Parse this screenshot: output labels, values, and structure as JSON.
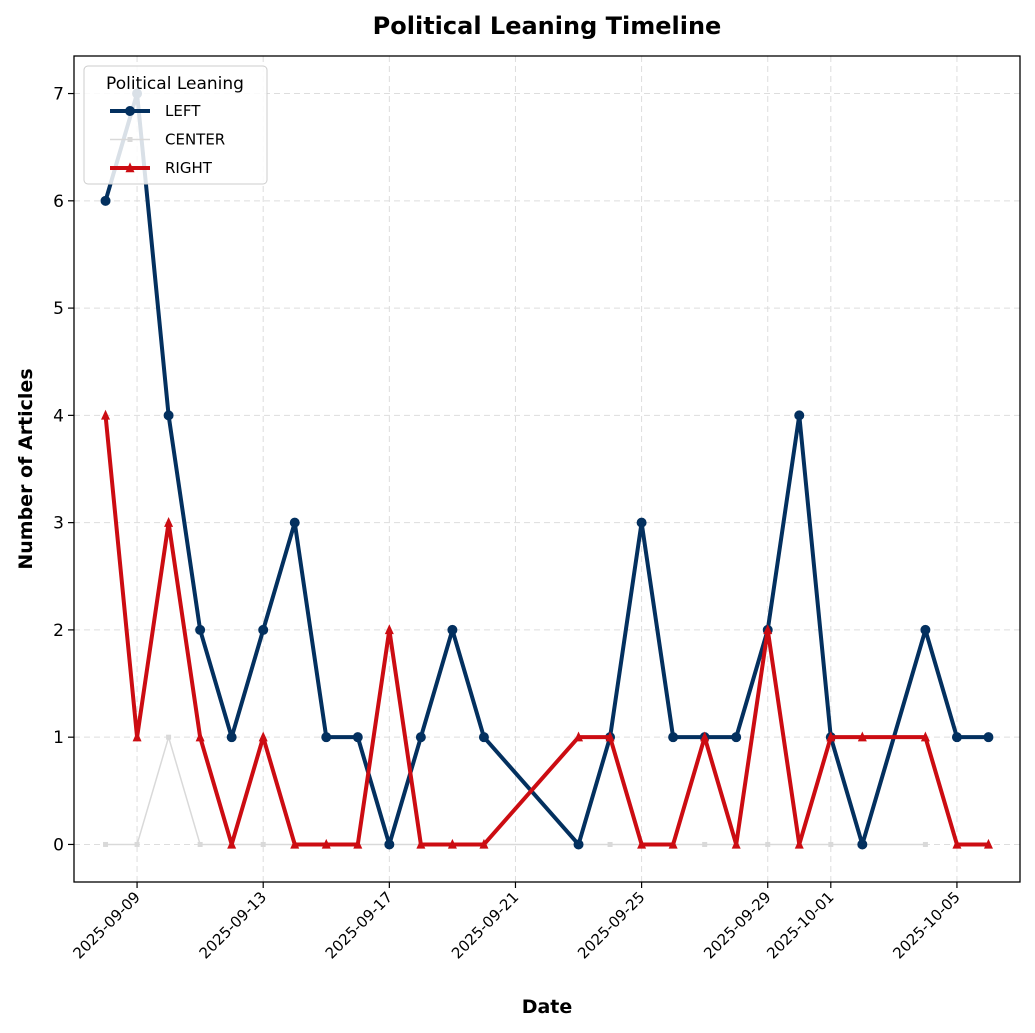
{
  "chart_data": {
    "type": "line",
    "title": "Political Leaning Timeline",
    "xlabel": "Date",
    "ylabel": "Number of Articles",
    "x_axis_type": "date",
    "xlim": [
      "2025-09-07",
      "2025-10-07"
    ],
    "ylim": [
      -0.35,
      7.35
    ],
    "yticks": [
      0,
      1,
      2,
      3,
      4,
      5,
      6,
      7
    ],
    "xticks": [
      "2025-09-09",
      "2025-09-13",
      "2025-09-17",
      "2025-09-21",
      "2025-09-25",
      "2025-09-29",
      "2025-10-01",
      "2025-10-05"
    ],
    "grid": true,
    "legend": {
      "title": "Political Leaning",
      "placement": "top-left"
    },
    "series": [
      {
        "name": "LEFT",
        "color": "#03305f",
        "marker": "circle",
        "points": [
          [
            "2025-09-08",
            6
          ],
          [
            "2025-09-09",
            7
          ],
          [
            "2025-09-10",
            4
          ],
          [
            "2025-09-11",
            2
          ],
          [
            "2025-09-12",
            1
          ],
          [
            "2025-09-13",
            2
          ],
          [
            "2025-09-14",
            3
          ],
          [
            "2025-09-15",
            1
          ],
          [
            "2025-09-16",
            1
          ],
          [
            "2025-09-17",
            0
          ],
          [
            "2025-09-18",
            1
          ],
          [
            "2025-09-19",
            2
          ],
          [
            "2025-09-20",
            1
          ],
          [
            "2025-09-23",
            0
          ],
          [
            "2025-09-24",
            1
          ],
          [
            "2025-09-25",
            3
          ],
          [
            "2025-09-26",
            1
          ],
          [
            "2025-09-27",
            1
          ],
          [
            "2025-09-28",
            1
          ],
          [
            "2025-09-29",
            2
          ],
          [
            "2025-09-30",
            4
          ],
          [
            "2025-10-01",
            1
          ],
          [
            "2025-10-02",
            0
          ],
          [
            "2025-10-04",
            2
          ],
          [
            "2025-10-05",
            1
          ],
          [
            "2025-10-06",
            1
          ]
        ]
      },
      {
        "name": "CENTER",
        "color": "#d9d9d9",
        "marker": "square",
        "points": [
          [
            "2025-09-08",
            0
          ],
          [
            "2025-09-09",
            0
          ],
          [
            "2025-09-10",
            1
          ],
          [
            "2025-09-11",
            0
          ],
          [
            "2025-09-13",
            0
          ],
          [
            "2025-09-17",
            0
          ],
          [
            "2025-09-23",
            0
          ],
          [
            "2025-09-24",
            0
          ],
          [
            "2025-09-27",
            0
          ],
          [
            "2025-09-29",
            0
          ],
          [
            "2025-10-01",
            0
          ],
          [
            "2025-10-02",
            0
          ],
          [
            "2025-10-04",
            0
          ]
        ]
      },
      {
        "name": "RIGHT",
        "color": "#cc0c12",
        "marker": "triangle",
        "points": [
          [
            "2025-09-08",
            4
          ],
          [
            "2025-09-09",
            1
          ],
          [
            "2025-09-10",
            3
          ],
          [
            "2025-09-11",
            1
          ],
          [
            "2025-09-12",
            0
          ],
          [
            "2025-09-13",
            1
          ],
          [
            "2025-09-14",
            0
          ],
          [
            "2025-09-15",
            0
          ],
          [
            "2025-09-16",
            0
          ],
          [
            "2025-09-17",
            2
          ],
          [
            "2025-09-18",
            0
          ],
          [
            "2025-09-19",
            0
          ],
          [
            "2025-09-20",
            0
          ],
          [
            "2025-09-23",
            1
          ],
          [
            "2025-09-24",
            1
          ],
          [
            "2025-09-25",
            0
          ],
          [
            "2025-09-26",
            0
          ],
          [
            "2025-09-27",
            1
          ],
          [
            "2025-09-28",
            0
          ],
          [
            "2025-09-29",
            2
          ],
          [
            "2025-09-30",
            0
          ],
          [
            "2025-10-01",
            1
          ],
          [
            "2025-10-02",
            1
          ],
          [
            "2025-10-04",
            1
          ],
          [
            "2025-10-05",
            0
          ],
          [
            "2025-10-06",
            0
          ]
        ]
      }
    ]
  }
}
